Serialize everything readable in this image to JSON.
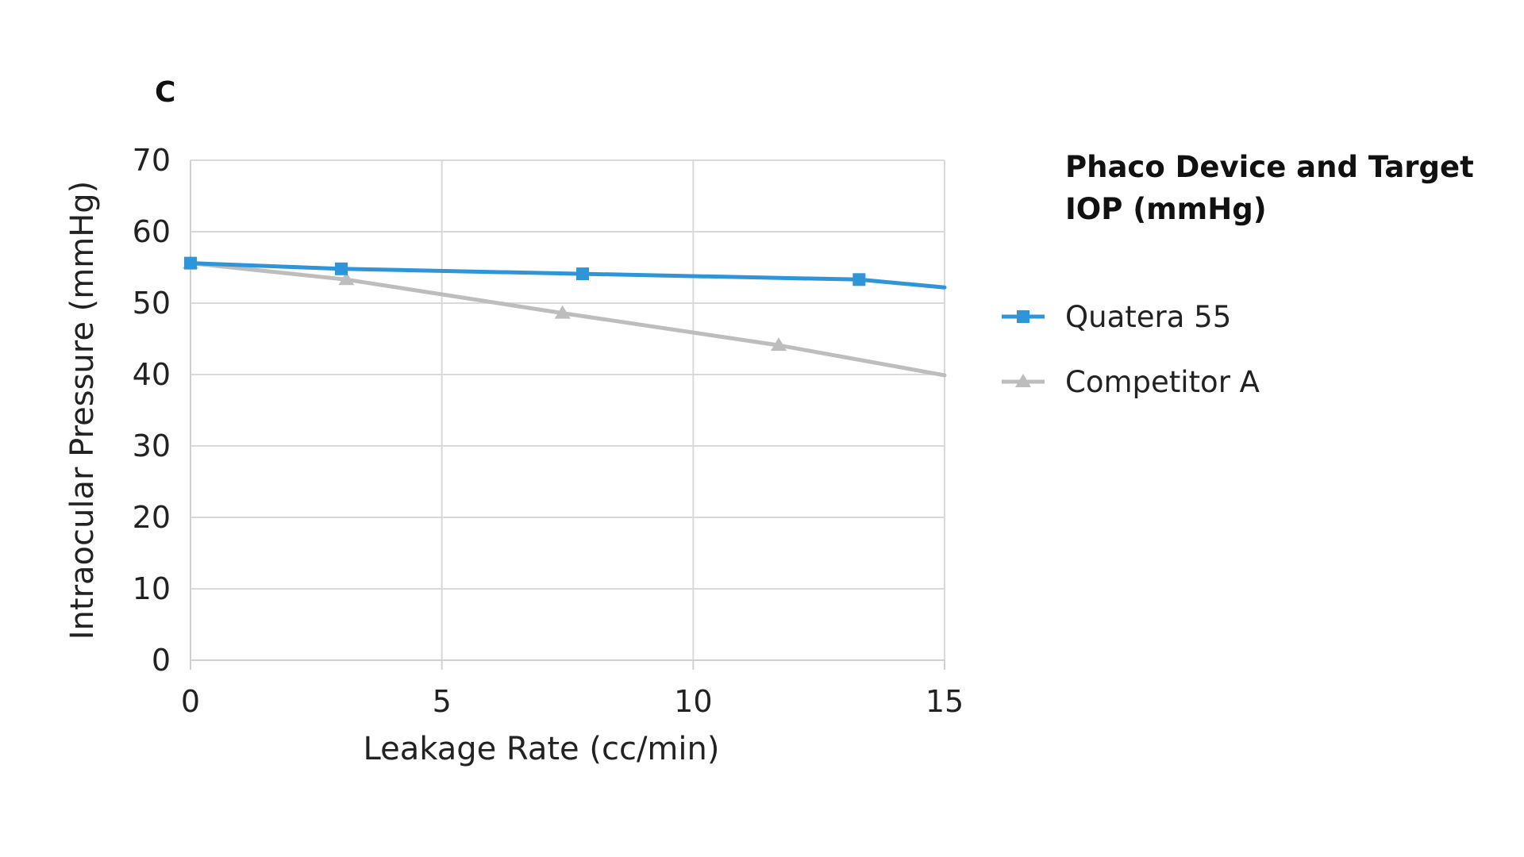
{
  "panel_label": "C",
  "chart_data": {
    "type": "line",
    "title": "",
    "xlabel": "Leakage Rate (cc/min)",
    "ylabel": "Intraocular Pressure (mmHg)",
    "xlim": [
      0,
      15
    ],
    "ylim": [
      0,
      70
    ],
    "x_ticks": [
      "0",
      "5",
      "10",
      "15"
    ],
    "y_ticks": [
      "0",
      "10",
      "20",
      "30",
      "40",
      "50",
      "60",
      "70"
    ],
    "grid": true,
    "legend_position": "right",
    "legend_title": "Phaco Device and Target IOP (mmHg)",
    "legend_title_lines": [
      "Phaco Device and Target",
      "IOP (mmHg)"
    ],
    "series": [
      {
        "name": "Quatera 55",
        "color": "#2e95d8",
        "marker": "square",
        "x": [
          0,
          3,
          7.8,
          13.3,
          15
        ],
        "y": [
          55.6,
          54.8,
          54.1,
          53.3,
          52.2
        ],
        "markers_at": [
          0,
          1,
          2,
          3
        ]
      },
      {
        "name": "Competitor A",
        "color": "#bdbdbd",
        "marker": "triangle",
        "x": [
          0,
          3.1,
          7.4,
          11.7,
          15
        ],
        "y": [
          55.6,
          53.3,
          48.6,
          44.1,
          39.9
        ],
        "markers_at": [
          0,
          1,
          2,
          3
        ]
      }
    ]
  }
}
